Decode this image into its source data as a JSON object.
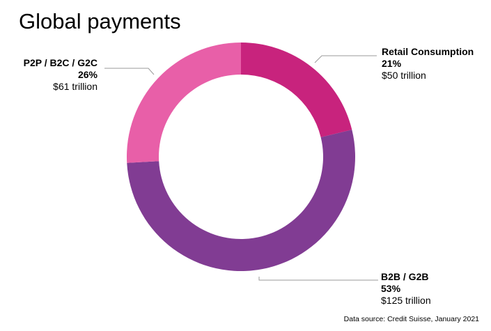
{
  "chart_data": {
    "type": "pie",
    "title": "Global payments",
    "categories": [
      "Retail Consumption",
      "B2B / G2B",
      "P2P / B2C / G2C"
    ],
    "values": [
      50,
      125,
      61
    ],
    "percents": [
      "21%",
      "53%",
      "26%"
    ],
    "amounts": [
      "$50 trillion",
      "$125 trillion",
      "$61 trillion"
    ],
    "colors": [
      "#c8237d",
      "#813c93",
      "#e85fa8"
    ],
    "source": "Data source: Credit Suisse, January 2021"
  }
}
